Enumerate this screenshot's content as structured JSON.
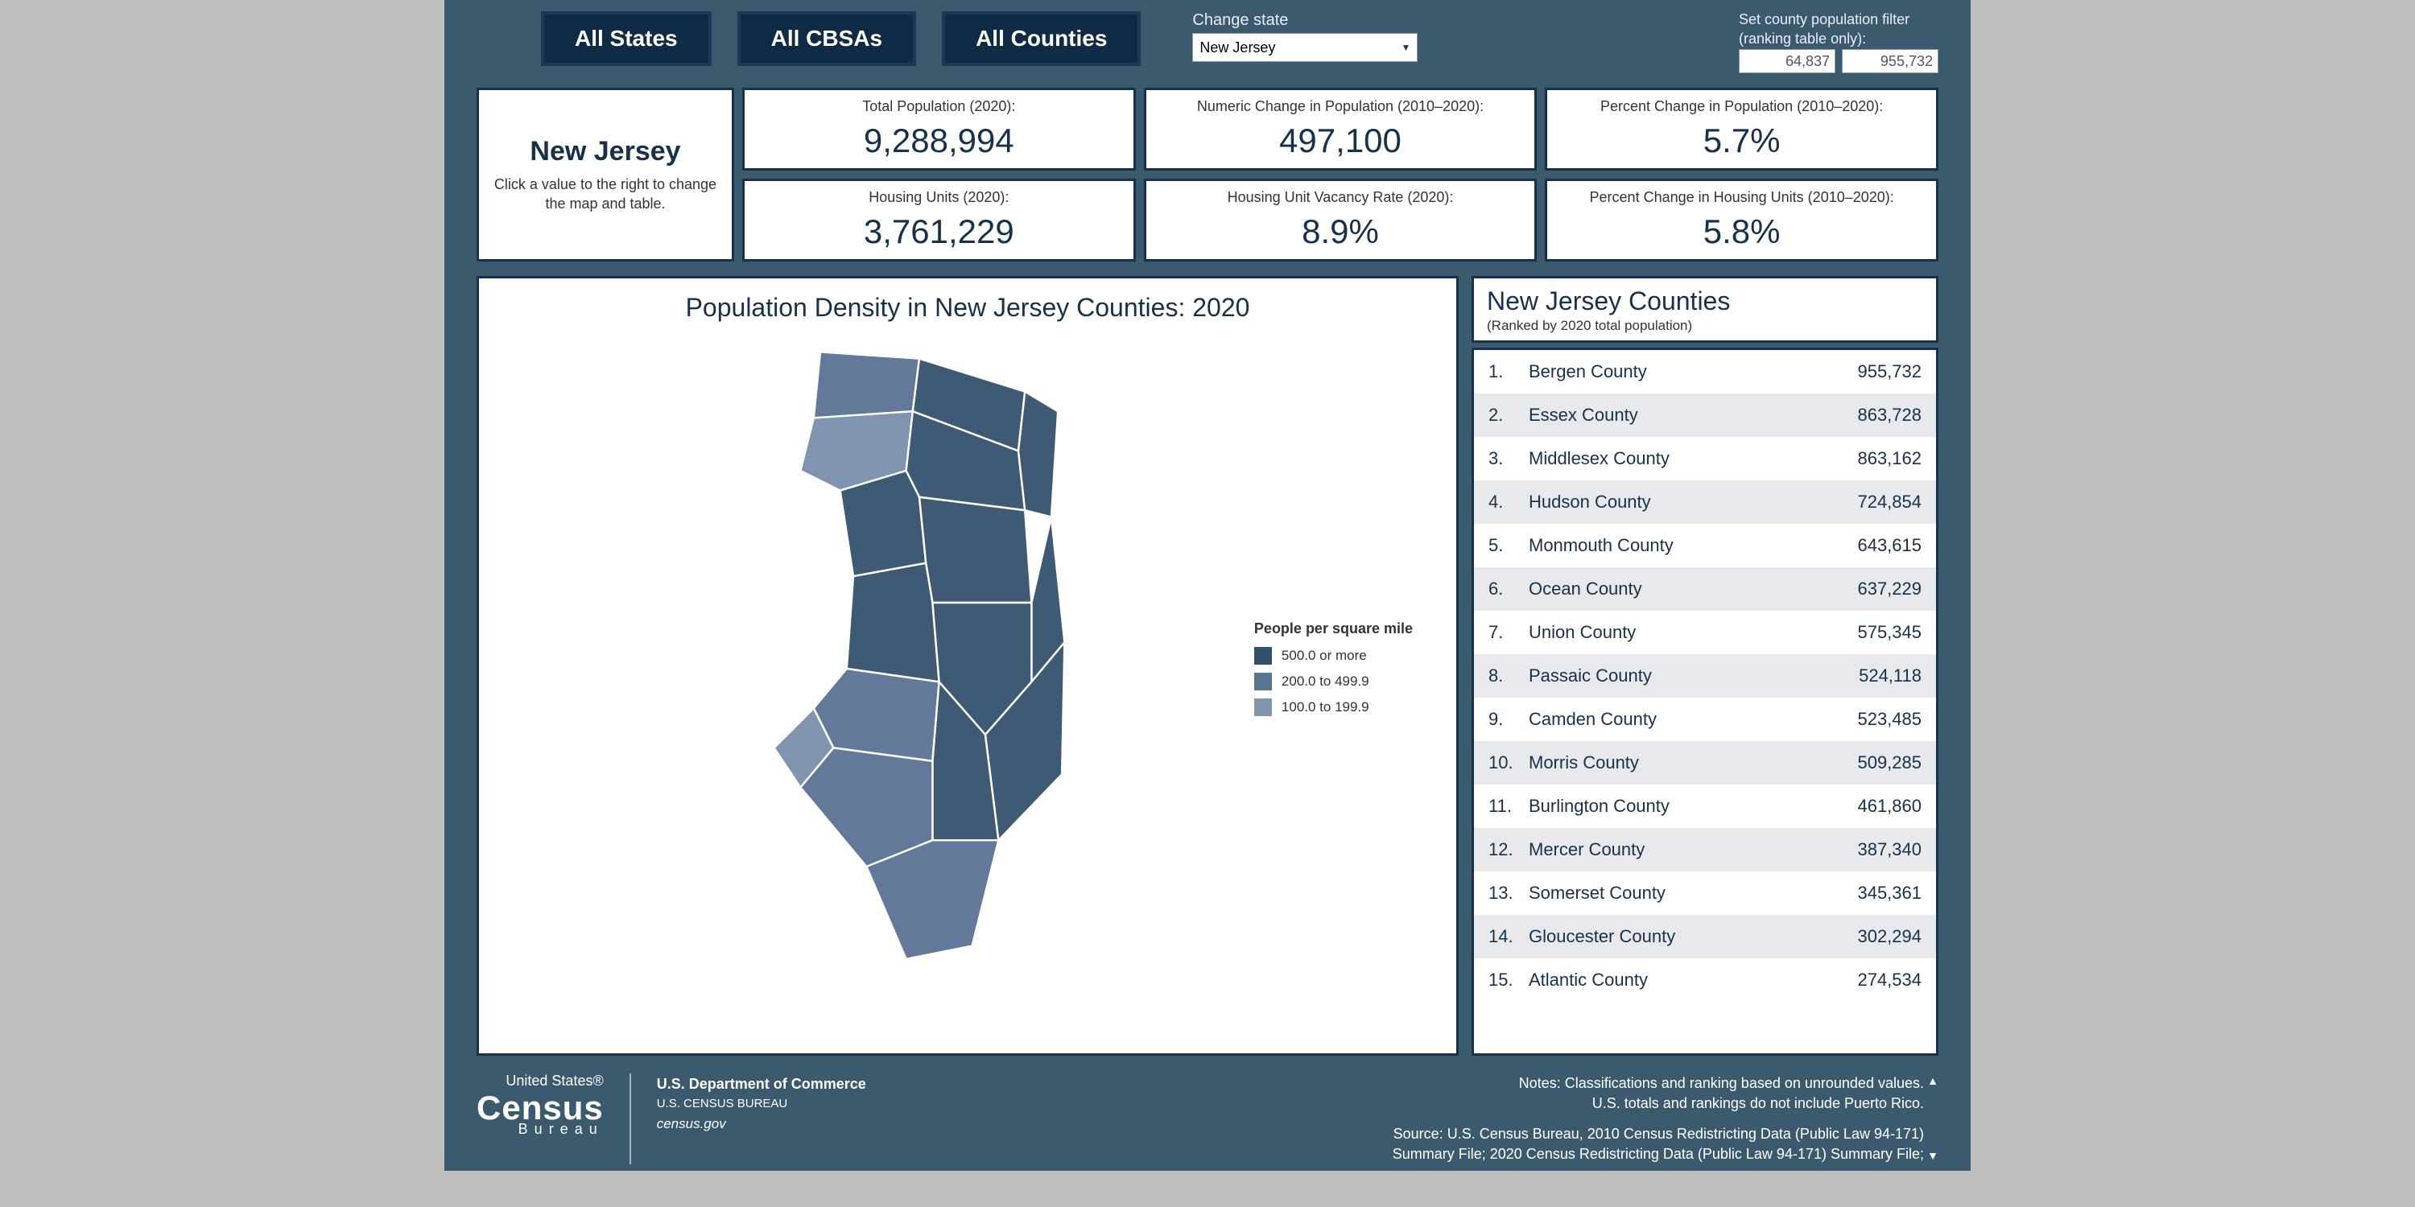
{
  "nav": {
    "all_states": "All States",
    "all_cbsas": "All CBSAs",
    "all_counties": "All Counties"
  },
  "change_state": {
    "label": "Change state",
    "selected": "New Jersey"
  },
  "filter": {
    "label1": "Set county population filter",
    "label2": "(ranking table only):",
    "min": "64,837",
    "max": "955,732"
  },
  "state_card": {
    "name": "New Jersey",
    "sub": "Click a value to the right to change the map and table."
  },
  "metrics": [
    {
      "label": "Total Population (2020):",
      "value": "9,288,994"
    },
    {
      "label": "Numeric Change in Population (2010–2020):",
      "value": "497,100"
    },
    {
      "label": "Percent Change in Population (2010–2020):",
      "value": "5.7%"
    },
    {
      "label": "Housing Units (2020):",
      "value": "3,761,229"
    },
    {
      "label": "Housing Unit Vacancy Rate (2020):",
      "value": "8.9%"
    },
    {
      "label": "Percent Change in Housing Units (2010–2020):",
      "value": "5.8%"
    }
  ],
  "map": {
    "title": "Population Density in New Jersey Counties: 2020",
    "legend_title": "People per square mile",
    "legend": [
      {
        "label": "500.0 or more",
        "color": "#35506b"
      },
      {
        "label": "200.0 to 499.9",
        "color": "#5a7590"
      },
      {
        "label": "100.0 to 199.9",
        "color": "#8197ae"
      }
    ],
    "fill_dark": "#3f5a74",
    "fill_mid": "#62799a",
    "fill_light": "#8094b0",
    "stroke": "#ffffff"
  },
  "ranking": {
    "title": "New Jersey Counties",
    "sub": "(Ranked by 2020 total population)",
    "rows": [
      {
        "n": "1.",
        "name": "Bergen County",
        "val": "955,732"
      },
      {
        "n": "2.",
        "name": "Essex County",
        "val": "863,728"
      },
      {
        "n": "3.",
        "name": "Middlesex County",
        "val": "863,162"
      },
      {
        "n": "4.",
        "name": "Hudson County",
        "val": "724,854"
      },
      {
        "n": "5.",
        "name": "Monmouth County",
        "val": "643,615"
      },
      {
        "n": "6.",
        "name": "Ocean County",
        "val": "637,229"
      },
      {
        "n": "7.",
        "name": "Union County",
        "val": "575,345"
      },
      {
        "n": "8.",
        "name": "Passaic County",
        "val": "524,118"
      },
      {
        "n": "9.",
        "name": "Camden County",
        "val": "523,485"
      },
      {
        "n": "10.",
        "name": "Morris County",
        "val": "509,285"
      },
      {
        "n": "11.",
        "name": "Burlington County",
        "val": "461,860"
      },
      {
        "n": "12.",
        "name": "Mercer County",
        "val": "387,340"
      },
      {
        "n": "13.",
        "name": "Somerset County",
        "val": "345,361"
      },
      {
        "n": "14.",
        "name": "Gloucester County",
        "val": "302,294"
      },
      {
        "n": "15.",
        "name": "Atlantic County",
        "val": "274,534"
      }
    ]
  },
  "footer": {
    "united": "United States®",
    "census": "Census",
    "bureau": "Bureau",
    "dept1": "U.S. Department of Commerce",
    "dept2": "U.S. CENSUS BUREAU",
    "dept3": "census.gov",
    "note1": "Notes: Classifications and ranking based on unrounded values.",
    "note2": "U.S. totals and rankings do not include Puerto Rico.",
    "note3": "Source: U.S. Census Bureau, 2010 Census Redistricting Data (Public Law 94-171)",
    "note4": "Summary File; 2020 Census Redistricting Data (Public Law 94-171) Summary File;"
  }
}
